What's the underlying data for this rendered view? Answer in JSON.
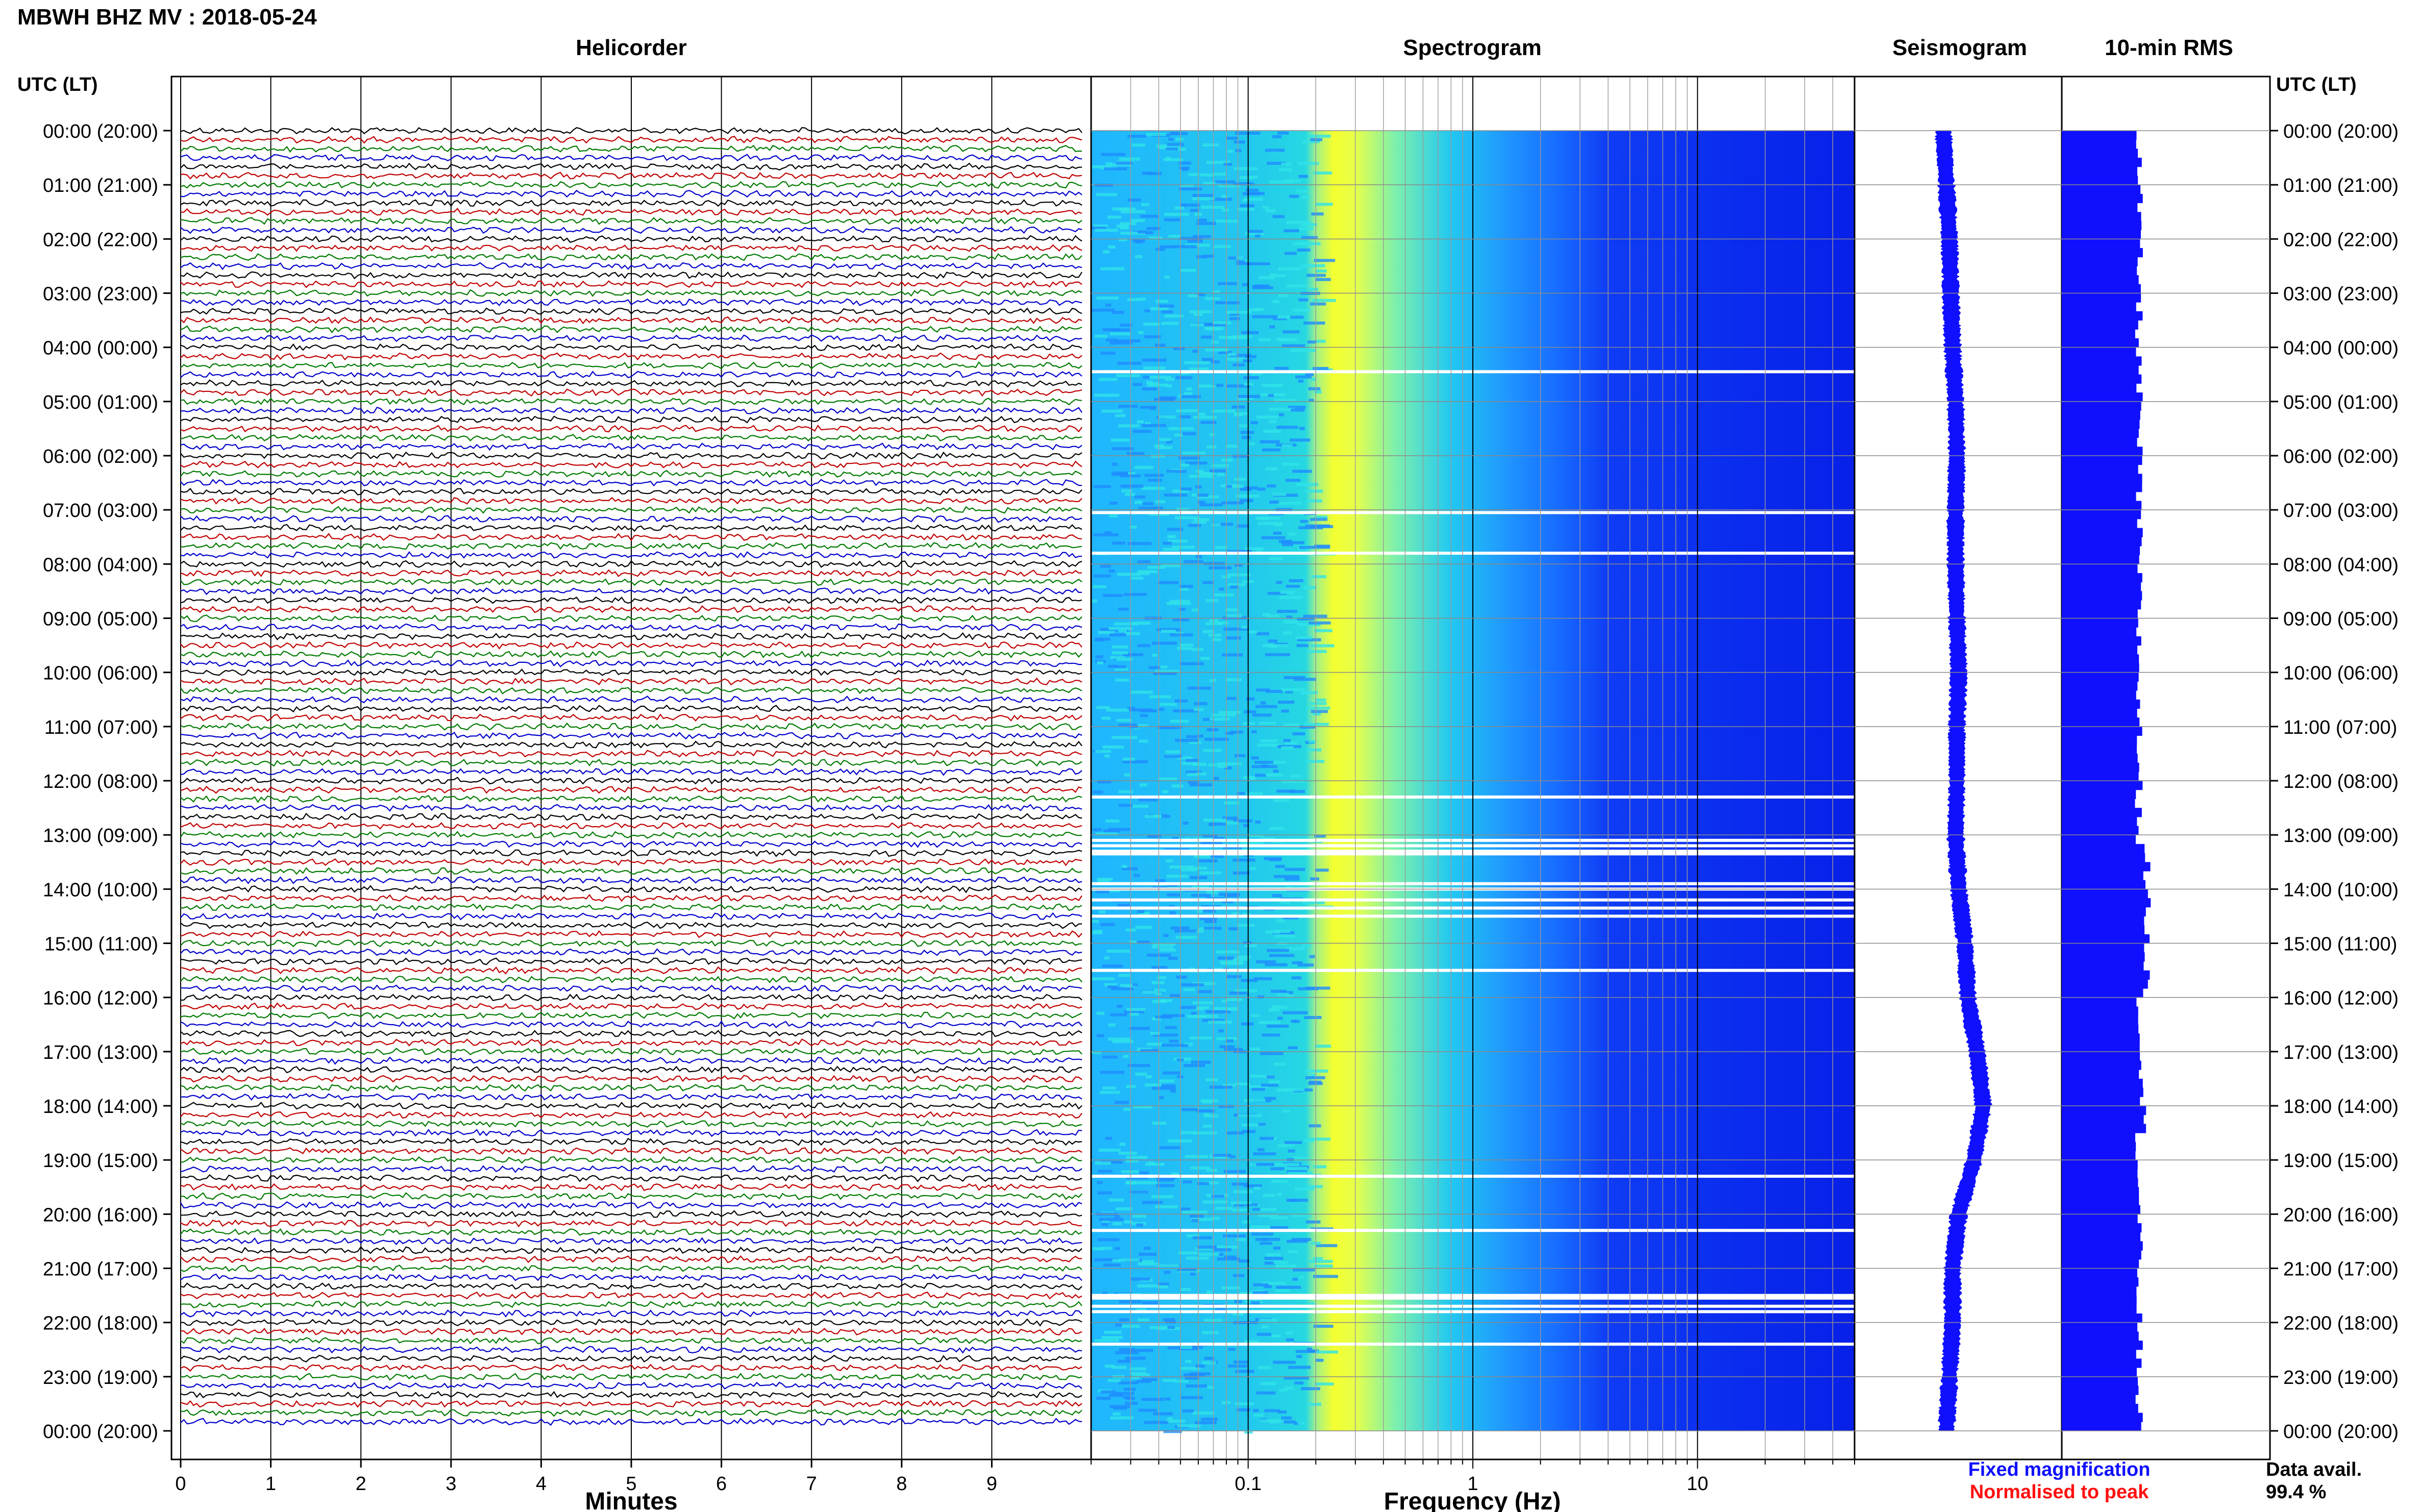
{
  "title": "MBWH BHZ MV : 2018-05-24",
  "panels": {
    "helicorder": "Helicorder",
    "spectrogram": "Spectrogram",
    "seismogram": "Seismogram",
    "rms": "10-min RMS"
  },
  "time_axis_label": "UTC (LT)",
  "legend": {
    "fixed": "Fixed magnification",
    "normalised": "Normalised to peak",
    "fixed_color": "#1010ff",
    "normalised_color": "#ff1010"
  },
  "data_avail": {
    "label": "Data avail.",
    "value": "99.4 %"
  },
  "chart_data": [
    {
      "type": "line",
      "name": "helicorder",
      "title": "Helicorder",
      "xlabel": "Minutes",
      "x_ticks": [
        0,
        1,
        2,
        3,
        4,
        5,
        6,
        7,
        8,
        9
      ],
      "xlim": [
        0,
        10
      ],
      "y_tick_labels": [
        "00:00 (20:00)",
        "01:00 (21:00)",
        "02:00 (22:00)",
        "03:00 (23:00)",
        "04:00 (00:00)",
        "05:00 (01:00)",
        "06:00 (02:00)",
        "07:00 (03:00)",
        "08:00 (04:00)",
        "09:00 (05:00)",
        "10:00 (06:00)",
        "11:00 (07:00)",
        "12:00 (08:00)",
        "13:00 (09:00)",
        "14:00 (10:00)",
        "15:00 (11:00)",
        "16:00 (12:00)",
        "17:00 (13:00)",
        "18:00 (14:00)",
        "19:00 (15:00)",
        "20:00 (16:00)",
        "21:00 (17:00)",
        "22:00 (18:00)",
        "23:00 (19:00)",
        "00:00 (20:00)"
      ],
      "trace_colors": [
        "#000000",
        "#c00000",
        "#007a00",
        "#0000cc"
      ],
      "lines_per_hour": 6,
      "hours": 24
    },
    {
      "type": "heatmap",
      "name": "spectrogram",
      "title": "Spectrogram",
      "xlabel": "Frequency (Hz)",
      "x_scale": "log",
      "xlim": [
        0.02,
        50
      ],
      "x_ticks": [
        0.1,
        1,
        10
      ],
      "x_tick_labels": [
        "0.1",
        "1",
        "10"
      ],
      "colormap": [
        "#0000ff",
        "#1e90ff",
        "#00e0ff",
        "#ffff00"
      ],
      "peak_band_hz": [
        0.2,
        0.4
      ],
      "white_gap_rows_hours": [
        4.45,
        7.05,
        7.8,
        12.3,
        13.1,
        13.2,
        13.3,
        13.35,
        13.9,
        14.0,
        14.2,
        14.35,
        14.5,
        15.5,
        19.3,
        20.3,
        21.5,
        21.55,
        21.7,
        21.8,
        22.4
      ]
    },
    {
      "type": "line",
      "name": "seismogram",
      "title": "Seismogram",
      "hours": [
        0,
        1,
        2,
        3,
        4,
        5,
        6,
        7,
        8,
        9,
        10,
        11,
        12,
        13,
        14,
        15,
        16,
        17,
        18,
        19,
        20,
        21,
        22,
        23,
        24
      ],
      "offset": [
        -0.1,
        -0.05,
        0.0,
        0.02,
        0.05,
        0.1,
        0.12,
        0.1,
        0.1,
        0.12,
        0.15,
        0.12,
        0.12,
        0.1,
        0.15,
        0.25,
        0.3,
        0.45,
        0.55,
        0.4,
        0.15,
        0.05,
        0.05,
        0.0,
        -0.05
      ],
      "color": "#1010ff"
    },
    {
      "type": "bar",
      "name": "rms",
      "title": "10-min RMS",
      "orientation": "horizontal",
      "bins": 144,
      "base_level": 0.78,
      "color": "#1010ff"
    }
  ]
}
